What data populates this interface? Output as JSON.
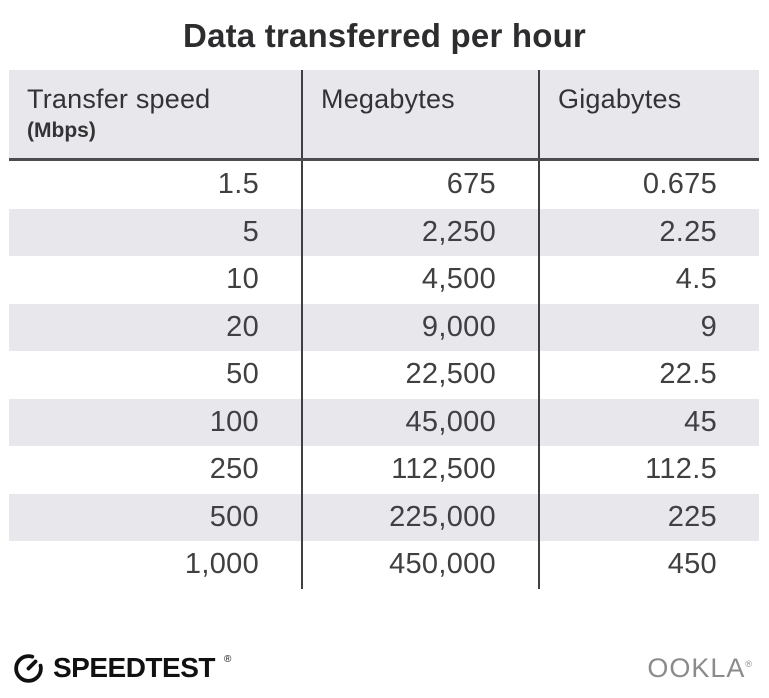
{
  "title": "Data transferred per hour",
  "table": {
    "columns": [
      {
        "label": "Transfer speed",
        "sublabel": "(Mbps)"
      },
      {
        "label": "Megabytes",
        "sublabel": ""
      },
      {
        "label": "Gigabytes",
        "sublabel": ""
      }
    ],
    "rows": [
      [
        "1.5",
        "675",
        "0.675"
      ],
      [
        "5",
        "2,250",
        "2.25"
      ],
      [
        "10",
        "4,500",
        "4.5"
      ],
      [
        "20",
        "9,000",
        "9"
      ],
      [
        "50",
        "22,500",
        "22.5"
      ],
      [
        "100",
        "45,000",
        "45"
      ],
      [
        "250",
        "112,500",
        "112.5"
      ],
      [
        "500",
        "225,000",
        "225"
      ],
      [
        "1,000",
        "450,000",
        "450"
      ]
    ]
  },
  "footer": {
    "brand": "SPEEDTEST",
    "brand_trademark": "®",
    "attribution": "OOKLA",
    "attribution_trademark": "®"
  },
  "colors": {
    "header_bg": "#e8e8ec",
    "stripe_bg": "#e8e8ec",
    "divider": "#404044",
    "header_border": "#4c4c50",
    "title_text": "#2d2d2f",
    "body_text": "#404042",
    "brand_black": "#111113",
    "ookla_gray": "#8b8b8d"
  },
  "chart_data": {
    "type": "table",
    "title": "Data transferred per hour",
    "columns": [
      "Transfer speed (Mbps)",
      "Megabytes",
      "Gigabytes"
    ],
    "rows": [
      [
        1.5,
        675,
        0.675
      ],
      [
        5,
        2250,
        2.25
      ],
      [
        10,
        4500,
        4.5
      ],
      [
        20,
        9000,
        9
      ],
      [
        50,
        22500,
        22.5
      ],
      [
        100,
        45000,
        45
      ],
      [
        250,
        112500,
        112.5
      ],
      [
        500,
        225000,
        225
      ],
      [
        1000,
        450000,
        450
      ]
    ]
  }
}
